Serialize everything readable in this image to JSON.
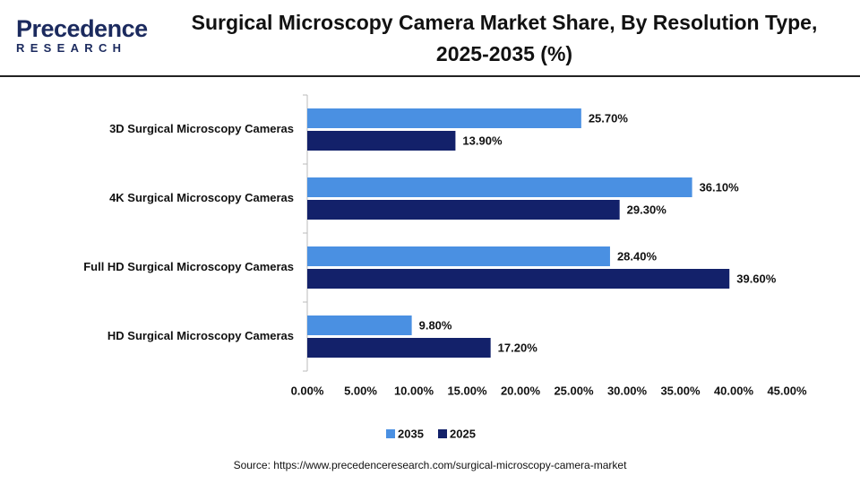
{
  "logo": {
    "name": "Precedence",
    "tagline": "RESEARCH"
  },
  "chart_data": {
    "type": "hbar",
    "title": "Surgical Microscopy Camera Market Share, By Resolution Type, 2025-2035 (%)",
    "categories": [
      "3D Surgical Microscopy Cameras",
      "4K Surgical Microscopy Cameras",
      "Full HD Surgical Microscopy Cameras",
      "HD Surgical Microscopy Cameras"
    ],
    "series": [
      {
        "name": "2035",
        "color": "#4a90e2",
        "values": [
          25.7,
          36.1,
          28.4,
          9.8
        ],
        "value_labels": [
          "25.70%",
          "36.10%",
          "28.40%",
          "9.80%"
        ]
      },
      {
        "name": "2025",
        "color": "#13216a",
        "values": [
          13.9,
          29.3,
          39.6,
          17.2
        ],
        "value_labels": [
          "13.90%",
          "29.30%",
          "39.60%",
          "17.20%"
        ]
      }
    ],
    "xlim": [
      0,
      45
    ],
    "xticks": [
      {
        "value": 0,
        "label": "0.00%"
      },
      {
        "value": 5,
        "label": "5.00%"
      },
      {
        "value": 10,
        "label": "10.00%"
      },
      {
        "value": 15,
        "label": "15.00%"
      },
      {
        "value": 20,
        "label": "20.00%"
      },
      {
        "value": 25,
        "label": "25.00%"
      },
      {
        "value": 30,
        "label": "30.00%"
      },
      {
        "value": 35,
        "label": "35.00%"
      },
      {
        "value": 40,
        "label": "40.00%"
      },
      {
        "value": 45,
        "label": "45.00%"
      }
    ],
    "grid": false,
    "legend": "bottom"
  },
  "source": "Source: https://www.precedenceresearch.com/surgical-microscopy-camera-market"
}
